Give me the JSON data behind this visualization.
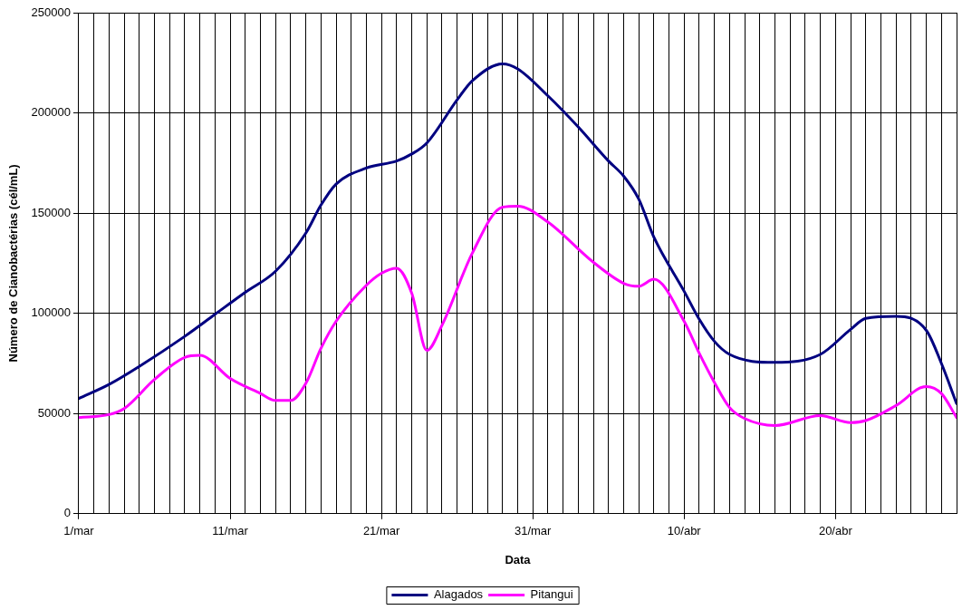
{
  "chart_data": {
    "type": "line",
    "xlabel": "Data",
    "ylabel": "Número de Cianobactérias (cél/mL)",
    "xlim": [
      "--03-01",
      "--04-28"
    ],
    "xticks": [
      {
        "value": "--03-01",
        "label": "1/mar"
      },
      {
        "value": "--03-02",
        "label": null
      },
      {
        "value": "--03-03",
        "label": null
      },
      {
        "value": "--03-04",
        "label": null
      },
      {
        "value": "--03-05",
        "label": null
      },
      {
        "value": "--03-06",
        "label": null
      },
      {
        "value": "--03-07",
        "label": null
      },
      {
        "value": "--03-08",
        "label": null
      },
      {
        "value": "--03-09",
        "label": null
      },
      {
        "value": "--03-10",
        "label": null
      },
      {
        "value": "--03-11",
        "label": "11/mar"
      },
      {
        "value": "--03-12",
        "label": null
      },
      {
        "value": "--03-13",
        "label": null
      },
      {
        "value": "--03-14",
        "label": null
      },
      {
        "value": "--03-15",
        "label": null
      },
      {
        "value": "--03-16",
        "label": null
      },
      {
        "value": "--03-17",
        "label": null
      },
      {
        "value": "--03-18",
        "label": null
      },
      {
        "value": "--03-19",
        "label": null
      },
      {
        "value": "--03-20",
        "label": null
      },
      {
        "value": "--03-21",
        "label": "21/mar"
      },
      {
        "value": "--03-22",
        "label": null
      },
      {
        "value": "--03-23",
        "label": null
      },
      {
        "value": "--03-24",
        "label": null
      },
      {
        "value": "--03-25",
        "label": null
      },
      {
        "value": "--03-26",
        "label": null
      },
      {
        "value": "--03-27",
        "label": null
      },
      {
        "value": "--03-28",
        "label": null
      },
      {
        "value": "--03-29",
        "label": null
      },
      {
        "value": "--03-30",
        "label": null
      },
      {
        "value": "--03-31",
        "label": "31/mar"
      },
      {
        "value": "--04-01",
        "label": null
      },
      {
        "value": "--04-02",
        "label": null
      },
      {
        "value": "--04-03",
        "label": null
      },
      {
        "value": "--04-04",
        "label": null
      },
      {
        "value": "--04-05",
        "label": null
      },
      {
        "value": "--04-06",
        "label": null
      },
      {
        "value": "--04-07",
        "label": null
      },
      {
        "value": "--04-08",
        "label": null
      },
      {
        "value": "--04-09",
        "label": null
      },
      {
        "value": "--04-10",
        "label": "10/abr"
      },
      {
        "value": "--04-11",
        "label": null
      },
      {
        "value": "--04-12",
        "label": null
      },
      {
        "value": "--04-13",
        "label": null
      },
      {
        "value": "--04-14",
        "label": null
      },
      {
        "value": "--04-15",
        "label": null
      },
      {
        "value": "--04-16",
        "label": null
      },
      {
        "value": "--04-17",
        "label": null
      },
      {
        "value": "--04-18",
        "label": null
      },
      {
        "value": "--04-19",
        "label": null
      },
      {
        "value": "--04-20",
        "label": "20/abr"
      },
      {
        "value": "--04-21",
        "label": null
      },
      {
        "value": "--04-22",
        "label": null
      },
      {
        "value": "--04-23",
        "label": null
      },
      {
        "value": "--04-24",
        "label": null
      },
      {
        "value": "--04-25",
        "label": null
      },
      {
        "value": "--04-26",
        "label": null
      },
      {
        "value": "--04-27",
        "label": null
      },
      {
        "value": "--04-28",
        "label": null
      }
    ],
    "ylim": [
      0,
      250000
    ],
    "yticks": [
      0,
      50000,
      100000,
      150000,
      200000,
      250000
    ],
    "grid": true,
    "legend": "bottom",
    "marker": "none",
    "line_style": "solid",
    "series": [
      {
        "name": "Alagados",
        "color": "#000080",
        "x": [
          "--03-01",
          "--03-03",
          "--03-05",
          "--03-08",
          "--03-10",
          "--03-12",
          "--03-14",
          "--03-16",
          "--03-17",
          "--03-18",
          "--03-20",
          "--03-22",
          "--03-23",
          "--03-24",
          "--03-26",
          "--03-27",
          "--03-29",
          "--03-30",
          "--04-01",
          "--04-03",
          "--04-05",
          "--04-06",
          "--04-07",
          "--04-08",
          "--04-10",
          "--04-11",
          "--04-12",
          "--04-13",
          "--04-16",
          "--04-19",
          "--04-21",
          "--04-22",
          "--04-24",
          "--04-26",
          "--04-27",
          "--04-28"
        ],
        "values": [
          57500,
          64500,
          73500,
          88500,
          99500,
          110500,
          121000,
          140000,
          154000,
          164500,
          172500,
          176000,
          179500,
          185000,
          206500,
          216000,
          224500,
          222000,
          208500,
          193000,
          176000,
          168500,
          157000,
          138000,
          111000,
          97000,
          86000,
          79500,
          75500,
          79500,
          92000,
          97500,
          98500,
          91500,
          75000,
          55000
        ]
      },
      {
        "name": "Pitangui",
        "color": "#ff00ff",
        "x": [
          "--03-01",
          "--03-03",
          "--03-04",
          "--03-06",
          "--03-08",
          "--03-09",
          "--03-11",
          "--03-13",
          "--03-14",
          "--03-15",
          "--03-16",
          "--03-17",
          "--03-18",
          "--03-20",
          "--03-21",
          "--03-22",
          "--03-23",
          "--03-24",
          "--03-25",
          "--03-27",
          "--03-29",
          "--03-30",
          "--04-01",
          "--04-04",
          "--04-06",
          "--04-07",
          "--04-08",
          "--04-10",
          "--04-11",
          "--04-12",
          "--04-13",
          "--04-14",
          "--04-16",
          "--04-19",
          "--04-21",
          "--04-22",
          "--04-24",
          "--04-26",
          "--04-27",
          "--04-28"
        ],
        "values": [
          48000,
          49500,
          52500,
          67000,
          78000,
          79000,
          67500,
          60000,
          56500,
          56500,
          65000,
          82500,
          96000,
          114000,
          120000,
          122500,
          110000,
          81500,
          94000,
          130000,
          153000,
          153500,
          145500,
          125500,
          115000,
          113500,
          117000,
          96000,
          80000,
          65500,
          53000,
          47500,
          44000,
          49000,
          45500,
          46500,
          54000,
          63500,
          60000,
          48000
        ]
      }
    ]
  }
}
